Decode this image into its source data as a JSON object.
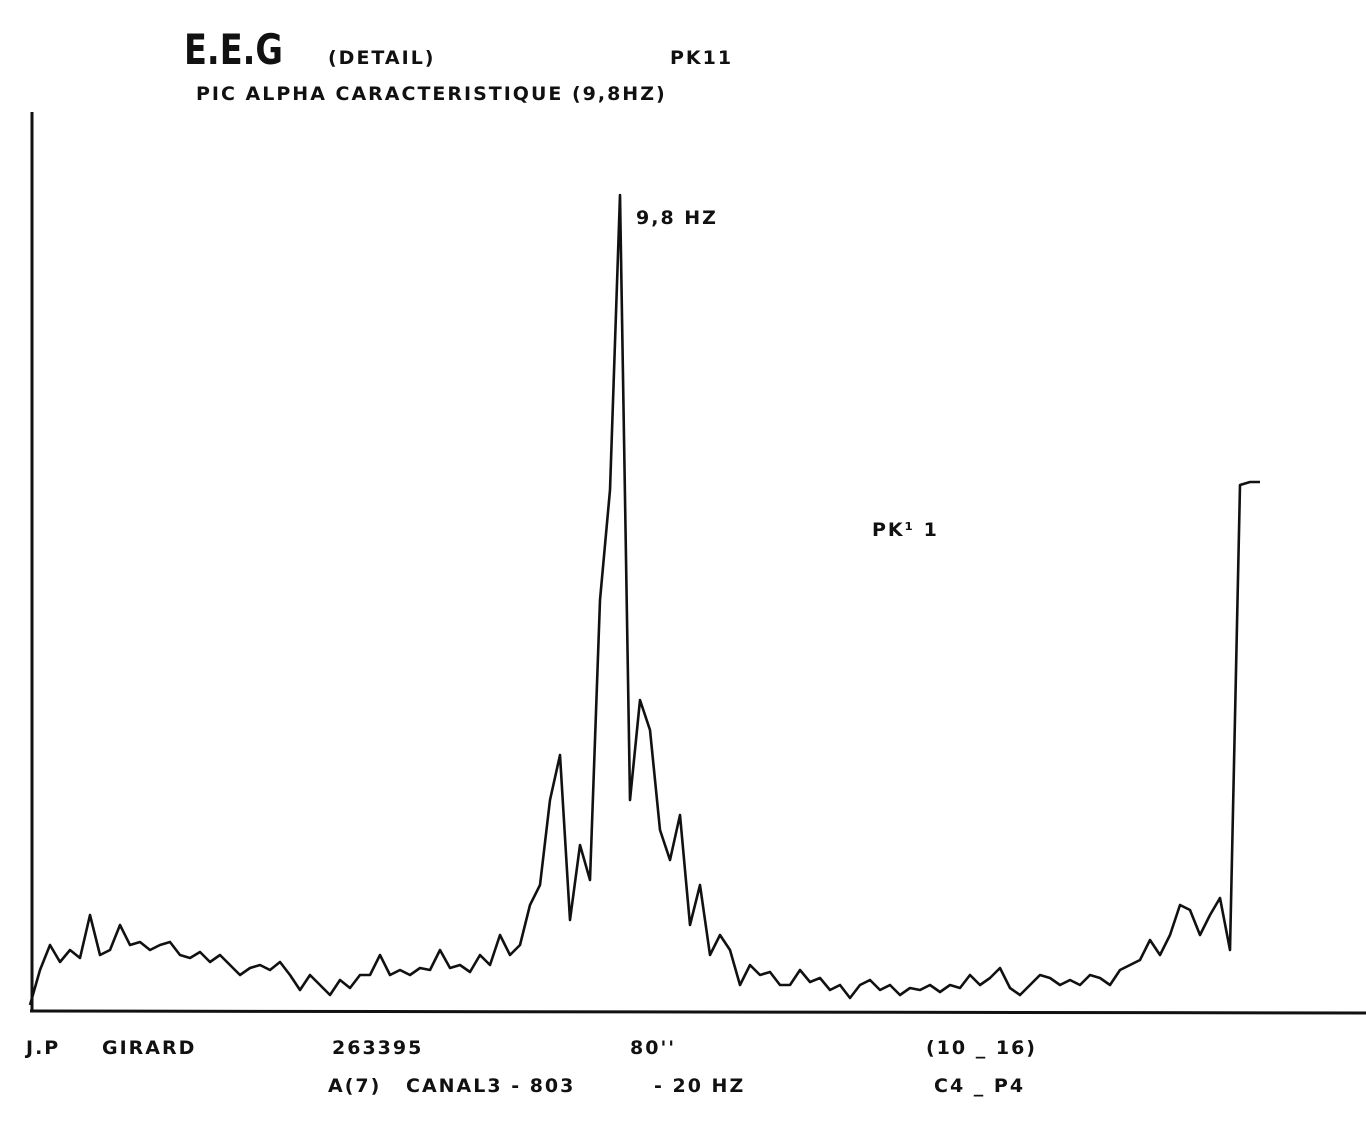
{
  "chart_data": {
    "type": "line",
    "title": "E.E.G",
    "title_note": "(DETAIL)",
    "code": "PK11",
    "subtitle": "PIC ALPHA CARACTERISTIQUE (9,8HZ)",
    "annotations": [
      "9,8 HZ",
      "PK¹ 1"
    ],
    "footer": [
      "J.P",
      "GIRARD",
      "263395",
      "80''",
      "(10 _ 16)",
      "A(7)",
      "CANAL3 - 803",
      "- 20 HZ",
      "C4 _ P4"
    ],
    "color": "#111111",
    "ylim": [
      0,
      895
    ],
    "values": [
      5,
      40,
      65,
      48,
      60,
      52,
      95,
      55,
      60,
      85,
      65,
      68,
      60,
      65,
      68,
      55,
      52,
      58,
      48,
      55,
      45,
      35,
      42,
      45,
      40,
      48,
      35,
      20,
      35,
      25,
      15,
      30,
      22,
      35,
      35,
      55,
      35,
      40,
      35,
      42,
      40,
      60,
      42,
      45,
      38,
      55,
      45,
      75,
      55,
      65,
      105,
      125,
      210,
      255,
      90,
      165,
      130,
      410,
      520,
      815,
      210,
      310,
      280,
      180,
      150,
      195,
      85,
      125,
      55,
      75,
      60,
      25,
      45,
      35,
      38,
      25,
      25,
      40,
      28,
      32,
      20,
      25,
      12,
      25,
      30,
      20,
      25,
      15,
      22,
      20,
      25,
      18,
      25,
      22,
      35,
      25,
      32,
      42,
      22,
      15,
      25,
      35,
      32,
      25,
      30,
      25,
      35,
      32,
      25,
      40,
      45,
      50,
      70,
      55,
      75,
      105,
      100,
      75,
      95,
      112,
      60,
      525,
      528,
      528
    ]
  }
}
